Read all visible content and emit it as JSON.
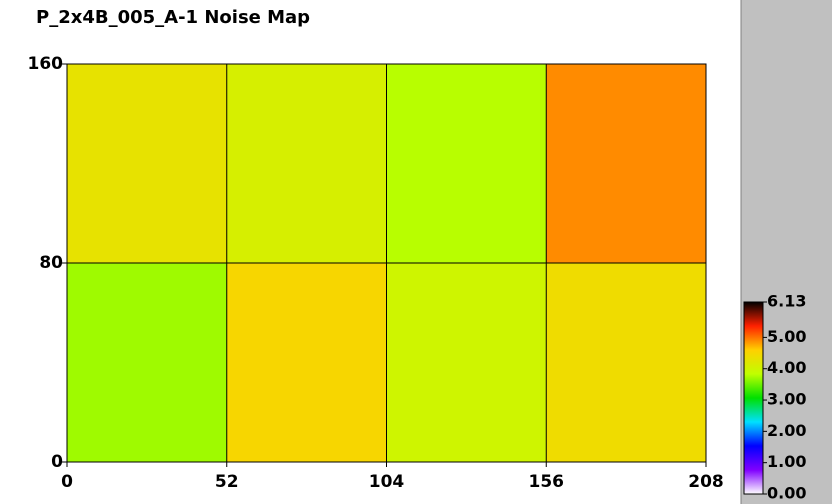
{
  "chart_data": {
    "type": "heatmap",
    "title": "P_2x4B_005_A-1 Noise Map",
    "xbins": [
      0,
      52,
      104,
      156,
      208
    ],
    "ybins": [
      0,
      80,
      160
    ],
    "values": [
      [
        3.7,
        4.5,
        4.0,
        4.4
      ],
      [
        4.3,
        4.1,
        3.8,
        4.9
      ]
    ],
    "xlim": [
      0,
      208
    ],
    "ylim": [
      0,
      160
    ],
    "xticks": [
      0,
      52,
      104,
      156,
      208
    ],
    "yticks": [
      0,
      80,
      160
    ],
    "zlim": [
      0,
      6.13
    ],
    "zticks": [
      {
        "value": 0,
        "label": "0.00"
      },
      {
        "value": 1,
        "label": "1.00"
      },
      {
        "value": 2,
        "label": "2.00"
      },
      {
        "value": 3,
        "label": "3.00"
      },
      {
        "value": 4,
        "label": "4.00"
      },
      {
        "value": 5,
        "label": "5.00"
      },
      6.13
    ],
    "colorscale": [
      "#ffffff",
      "#8000ff",
      "#0000ff",
      "#00e0ff",
      "#00e000",
      "#c0ff00",
      "#ffd000",
      "#ff2000",
      "#000000"
    ],
    "grid": true
  }
}
